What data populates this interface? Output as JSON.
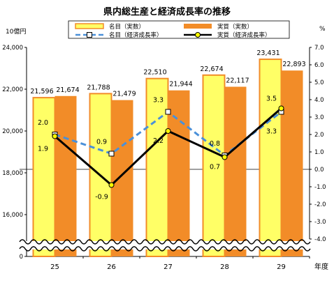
{
  "chart_data": {
    "type": "bar",
    "title": "県内総生産と経済成長率の推移",
    "categories": [
      "25",
      "26",
      "27",
      "28",
      "29"
    ],
    "xlabel": "年度",
    "y_left": {
      "unit_label": "10億円",
      "ticks": [
        "0",
        "16,000",
        "18,000",
        "20,000",
        "22,000",
        "24,000"
      ],
      "broken_axis": true,
      "visible_range": [
        15000,
        24000
      ]
    },
    "y_right": {
      "unit_label": "%",
      "ylim": [
        -4.0,
        7.0
      ],
      "ticks": [
        "-4.0",
        "-3.0",
        "-2.0",
        "-1.0",
        "0.0",
        "1.0",
        "2.0",
        "3.0",
        "4.0",
        "5.0",
        "6.0",
        "7.0"
      ]
    },
    "series": [
      {
        "name": "名目（実数）",
        "kind": "bar",
        "axis": "left",
        "color": "#FFFF66",
        "edge": "#F28C28",
        "values": [
          21596,
          21788,
          22510,
          22674,
          23431
        ],
        "labels": [
          "21,596",
          "21,788",
          "22,510",
          "22,674",
          "23,431"
        ]
      },
      {
        "name": "実質（実数）",
        "kind": "bar",
        "axis": "left",
        "color": "#F28C28",
        "values": [
          21674,
          21479,
          21944,
          22117,
          22893
        ],
        "labels": [
          "21,674",
          "21,479",
          "21,944",
          "22,117",
          "22,893"
        ]
      },
      {
        "name": "名目（経済成長率）",
        "kind": "line",
        "axis": "right",
        "color": "#1E90FF",
        "style": "dashed",
        "marker": "square",
        "values": [
          2.0,
          0.9,
          3.3,
          0.8,
          3.3
        ],
        "labels": [
          "2.0",
          "0.9",
          "3.3",
          "0.8",
          "3.3"
        ]
      },
      {
        "name": "実質（経済成長率）",
        "kind": "line",
        "axis": "right",
        "color": "#000000",
        "style": "solid",
        "marker": "circle",
        "values": [
          1.9,
          -0.9,
          2.2,
          0.7,
          3.5
        ],
        "labels": [
          "1.9",
          "-0.9",
          "2.2",
          "0.7",
          "3.5"
        ]
      }
    ],
    "legend_position": "top",
    "grid": false
  }
}
